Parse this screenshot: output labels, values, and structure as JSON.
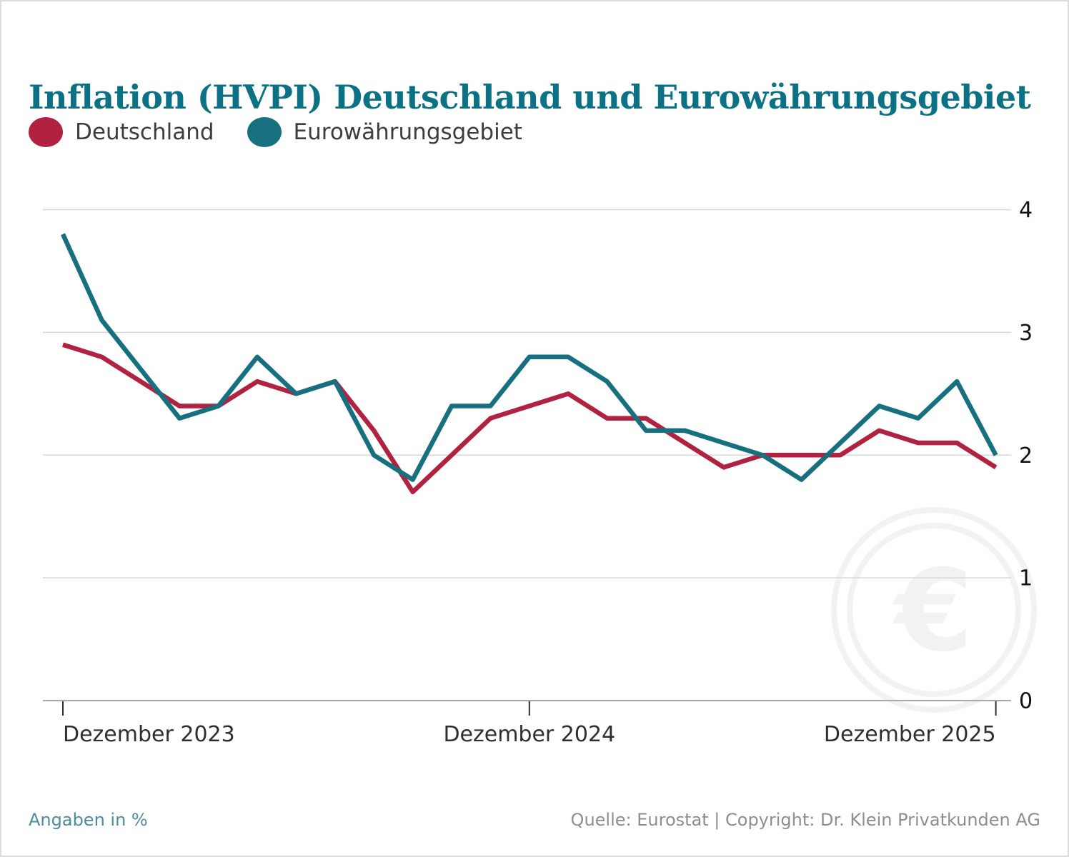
{
  "title": "Inflation (HVPI) Deutschland und Eurowährungsgebiet",
  "legend": [
    {
      "label": "Deutschland",
      "color": "#b0223f"
    },
    {
      "label": "Eurowährungsgebiet",
      "color": "#17707f"
    }
  ],
  "footer": {
    "left": "Angaben in %",
    "source": "Quelle: Eurostat | Copyright: Dr. Klein Privatkunden AG"
  },
  "watermark_symbol": "€",
  "colors": {
    "title": "#0b7286",
    "grid": "#d8d8d8",
    "axis": "#a8a8a8",
    "tick": "#2e2e2e",
    "x_label": "#2e2e2e",
    "y_label": "#111111",
    "watermark": "#f2f2f2"
  },
  "chart_data": {
    "type": "line",
    "x_unit": "Monat (Dezember 2023 bis Dezember 2025, monatlich)",
    "x_tick_labels": [
      {
        "index": 0,
        "label": "Dezember 2023",
        "align": "start"
      },
      {
        "index": 12,
        "label": "Dezember 2024",
        "align": "middle"
      },
      {
        "index": 24,
        "label": "Dezember 2025",
        "align": "end"
      }
    ],
    "y_ticks": [
      0,
      1,
      2,
      3,
      4
    ],
    "ylim": [
      0,
      4
    ],
    "grid": "horizontal",
    "legend_position": "top-left",
    "series": [
      {
        "name": "Deutschland",
        "color": "#b0223f",
        "values": [
          2.9,
          2.8,
          2.6,
          2.4,
          2.4,
          2.6,
          2.5,
          2.6,
          2.2,
          1.7,
          2.0,
          2.3,
          2.4,
          2.5,
          2.3,
          2.3,
          2.1,
          1.9,
          2.0,
          2.0,
          2.0,
          2.2,
          2.1,
          2.1,
          1.9
        ]
      },
      {
        "name": "Eurowährungsgebiet",
        "color": "#17707f",
        "values": [
          3.8,
          3.1,
          2.7,
          2.3,
          2.4,
          2.8,
          2.5,
          2.6,
          2.0,
          1.8,
          2.4,
          2.4,
          2.8,
          2.8,
          2.6,
          2.2,
          2.2,
          2.1,
          2.0,
          1.8,
          2.1,
          2.4,
          2.3,
          2.6,
          2.0
        ]
      }
    ]
  }
}
